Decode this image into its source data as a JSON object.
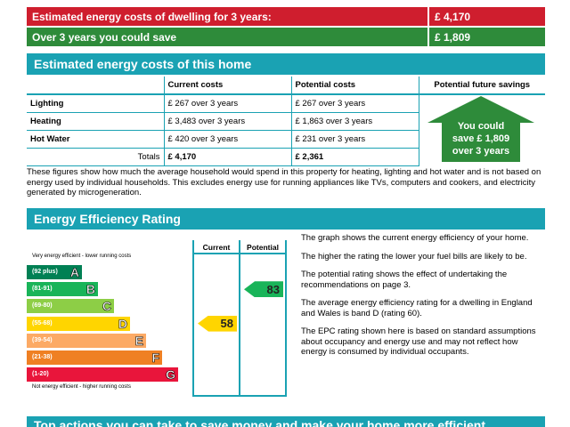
{
  "summary": {
    "row1": {
      "label": "Estimated energy costs of dwelling for 3 years:",
      "value": "£ 4,170"
    },
    "row2": {
      "label": "Over 3 years you could save",
      "value": "£ 1,809"
    }
  },
  "costs_section": {
    "title": "Estimated energy costs of this home",
    "headers": [
      "",
      "Current costs",
      "Potential costs",
      "Potential future savings"
    ],
    "rows": [
      {
        "label": "Lighting",
        "current": "£ 267 over 3 years",
        "potential": "£ 267 over 3 years"
      },
      {
        "label": "Heating",
        "current": "£ 3,483 over 3 years",
        "potential": "£ 1,863 over 3 years"
      },
      {
        "label": "Hot Water",
        "current": "£ 420 over 3 years",
        "potential": "£ 231 over 3 years"
      }
    ],
    "totals": {
      "label": "Totals",
      "current": "£ 4,170",
      "potential": "£ 2,361"
    },
    "savings": {
      "line1": "You could",
      "line2": "save £ 1,809",
      "line3": "over 3 years"
    },
    "note": "These figures show how much the average household would spend in this property for heating, lighting and hot water and is not based on energy used by individual households. This excludes energy use for running appliances like TVs, computers and cookers, and electricity generated by microgeneration."
  },
  "efficiency_section": {
    "title": "Energy Efficiency Rating",
    "scale_top": "Very energy efficient - lower running costs",
    "scale_bottom": "Not energy efficient - higher running costs",
    "col_current": "Current",
    "col_potential": "Potential",
    "bands": [
      {
        "range": "(92 plus)",
        "letter": "A",
        "color": "#008054"
      },
      {
        "range": "(81-91)",
        "letter": "B",
        "color": "#19b459"
      },
      {
        "range": "(69-80)",
        "letter": "C",
        "color": "#8dce46"
      },
      {
        "range": "(55-68)",
        "letter": "D",
        "color": "#ffd500"
      },
      {
        "range": "(39-54)",
        "letter": "E",
        "color": "#fcaa65"
      },
      {
        "range": "(21-38)",
        "letter": "F",
        "color": "#ef8023"
      },
      {
        "range": "(1-20)",
        "letter": "G",
        "color": "#e9153b"
      }
    ],
    "current_rating": {
      "value": "58",
      "band": "D",
      "color": "#ffd500"
    },
    "potential_rating": {
      "value": "83",
      "band": "B",
      "color": "#19b459"
    },
    "descriptions": [
      "The graph shows the current energy efficiency of your home.",
      "The higher the rating the lower your fuel bills are likely to be.",
      "The potential rating shows the effect of undertaking the recommendations on page 3.",
      "The average energy efficiency rating for a dwelling in England and Wales is band D (rating 60).",
      "The EPC rating shown here is based on standard assumptions about occupancy and energy use and may not reflect how energy is consumed by individual occupants."
    ]
  },
  "actions_section": {
    "title": "Top actions you can take to save money and make your home more efficient"
  },
  "colors": {
    "red": "#cf1e2e",
    "green": "#2e8b3a",
    "teal": "#1aa2b3"
  }
}
